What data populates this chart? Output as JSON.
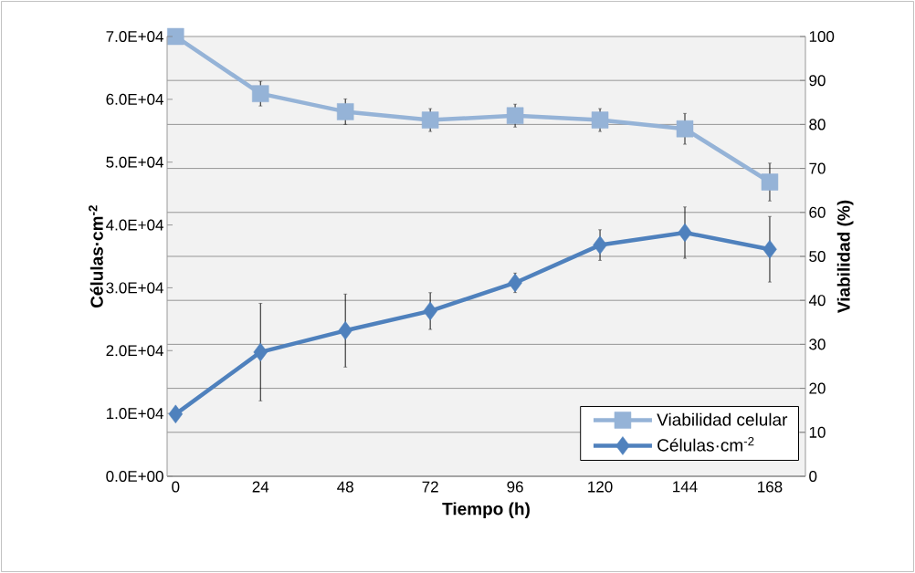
{
  "chart_data": {
    "type": "line",
    "xlabel": "Tiempo (h)",
    "ylabel": "Células·cm$^{-2}$",
    "y2label": "Viabilidad (%)",
    "categories": [
      "0",
      "24",
      "48",
      "72",
      "96",
      "120",
      "144",
      "168"
    ],
    "series": [
      {
        "name": "Viabilidad celular",
        "color": "#95b3d7",
        "axis": "y2",
        "marker": "square",
        "values": [
          100,
          87.0,
          82.9,
          81.0,
          82.0,
          81.0,
          79.0,
          66.9
        ],
        "errors": [
          null,
          2.8,
          2.9,
          2.6,
          2.6,
          2.6,
          3.5,
          4.3
        ]
      },
      {
        "name": "Células·cm$^{-2}$",
        "color": "#4f81bd",
        "marker": "diamond",
        "values": [
          9900,
          19760,
          23190,
          26300,
          30790,
          36800,
          38780,
          36130
        ],
        "errors": [
          null,
          7760,
          5810,
          2930,
          1550,
          2440,
          4090,
          5220
        ]
      }
    ],
    "ylim": [
      0,
      70000
    ],
    "yticks": [
      {
        "value": 0,
        "label": "0.0E+00"
      },
      {
        "value": 10000,
        "label": "1.0E+04"
      },
      {
        "value": 20000,
        "label": "2.0E+04"
      },
      {
        "value": 30000,
        "label": "3.0E+04"
      },
      {
        "value": 40000,
        "label": "4.0E+04"
      },
      {
        "value": 50000,
        "label": "5.0E+04"
      },
      {
        "value": 60000,
        "label": "6.0E+04"
      },
      {
        "value": 70000,
        "label": "7.0E+04"
      }
    ],
    "y2lim": [
      0,
      100
    ],
    "y2ticks": [
      0,
      10,
      20,
      30,
      40,
      50,
      60,
      70,
      80,
      90,
      100
    ],
    "grid": "y2",
    "legend": "bottom right"
  }
}
